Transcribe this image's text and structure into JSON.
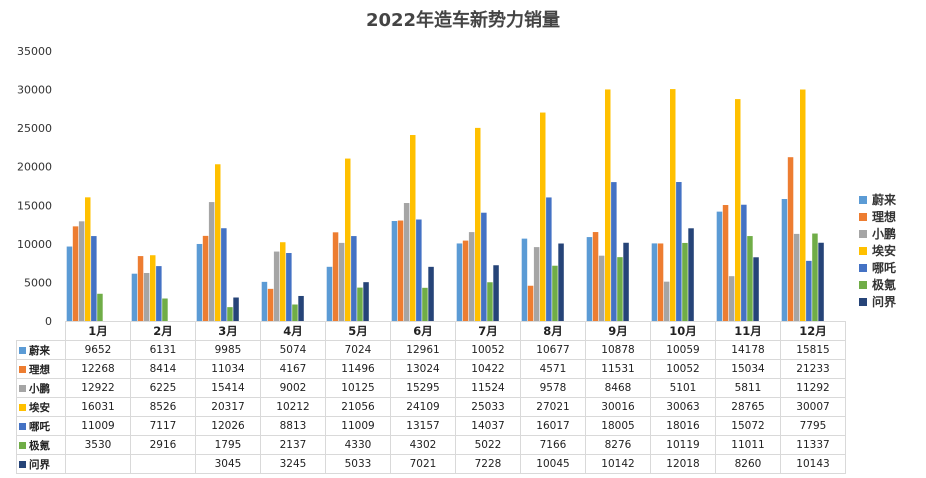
{
  "chart_data": {
    "type": "bar",
    "title": "2022年造车新势力销量",
    "categories": [
      "1月",
      "2月",
      "3月",
      "4月",
      "5月",
      "6月",
      "7月",
      "8月",
      "9月",
      "10月",
      "11月",
      "12月"
    ],
    "ylim": [
      0,
      35000
    ],
    "yticks": [
      "0",
      "5000",
      "10000",
      "15000",
      "20000",
      "25000",
      "30000",
      "35000"
    ],
    "legend_position": "right",
    "grid": false,
    "series": [
      {
        "name": "蔚来",
        "color": "#5b9bd5",
        "values": [
          9652,
          6131,
          9985,
          5074,
          7024,
          12961,
          10052,
          10677,
          10878,
          10059,
          14178,
          15815
        ]
      },
      {
        "name": "理想",
        "color": "#ed7d31",
        "values": [
          12268,
          8414,
          11034,
          4167,
          11496,
          13024,
          10422,
          4571,
          11531,
          10052,
          15034,
          21233
        ]
      },
      {
        "name": "小鹏",
        "color": "#a5a5a5",
        "values": [
          12922,
          6225,
          15414,
          9002,
          10125,
          15295,
          11524,
          9578,
          8468,
          5101,
          5811,
          11292
        ]
      },
      {
        "name": "埃安",
        "color": "#ffc000",
        "values": [
          16031,
          8526,
          20317,
          10212,
          21056,
          24109,
          25033,
          27021,
          30016,
          30063,
          28765,
          30007
        ]
      },
      {
        "name": "哪吒",
        "color": "#4472c4",
        "values": [
          11009,
          7117,
          12026,
          8813,
          11009,
          13157,
          14037,
          16017,
          18005,
          18016,
          15072,
          7795
        ]
      },
      {
        "name": "极氪",
        "color": "#70ad47",
        "values": [
          3530,
          2916,
          1795,
          2137,
          4330,
          4302,
          5022,
          7166,
          8276,
          10119,
          11011,
          11337
        ]
      },
      {
        "name": "问界",
        "color": "#264478",
        "values": [
          null,
          null,
          3045,
          3245,
          5033,
          7021,
          7228,
          10045,
          10142,
          12018,
          8260,
          10143
        ]
      }
    ],
    "table_rows": [
      [
        "9652",
        "6131",
        "9985",
        "5074",
        "7024",
        "12961",
        "10052",
        "10677",
        "10878",
        "10059",
        "14178",
        "15815"
      ],
      [
        "12268",
        "8414",
        "11034",
        "4167",
        "11496",
        "13024",
        "10422",
        "4571",
        "11531",
        "10052",
        "15034",
        "21233"
      ],
      [
        "12922",
        "6225",
        "15414",
        "9002",
        "10125",
        "15295",
        "11524",
        "9578",
        "8468",
        "5101",
        "5811",
        "11292"
      ],
      [
        "16031",
        "8526",
        "20317",
        "10212",
        "21056",
        "24109",
        "25033",
        "27021",
        "30016",
        "30063",
        "28765",
        "30007"
      ],
      [
        "11009",
        "7117",
        "12026",
        "8813",
        "11009",
        "13157",
        "14037",
        "16017",
        "18005",
        "18016",
        "15072",
        "7795"
      ],
      [
        "3530",
        "2916",
        "1795",
        "2137",
        "4330",
        "4302",
        "5022",
        "7166",
        "8276",
        "10119",
        "11011",
        "11337"
      ],
      [
        "",
        "",
        "3045",
        "3245",
        "5033",
        "7021",
        "7228",
        "10045",
        "10142",
        "12018",
        "8260",
        "10143"
      ]
    ]
  }
}
